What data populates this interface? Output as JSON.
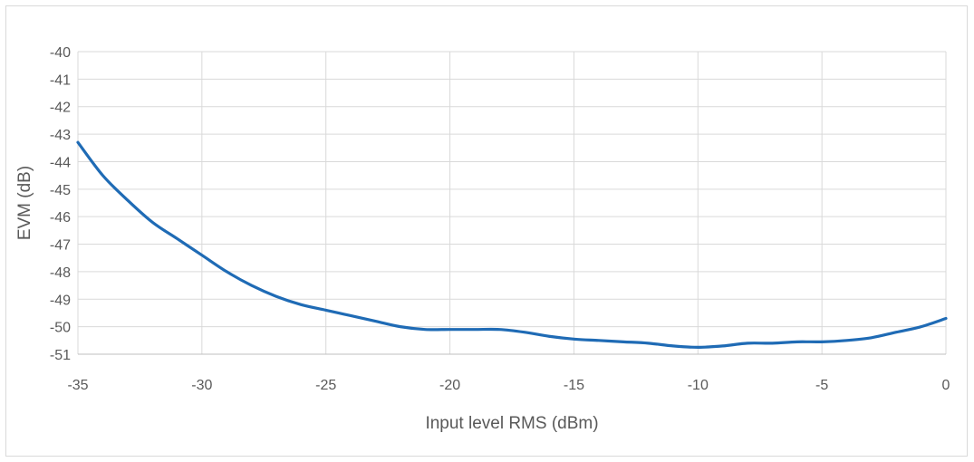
{
  "chart_data": {
    "type": "line",
    "title": "",
    "xlabel": "Input level RMS (dBm)",
    "ylabel": "EVM (dB)",
    "xlim": [
      -35,
      0
    ],
    "ylim": [
      -51,
      -40
    ],
    "x_ticks": [
      -35,
      -30,
      -25,
      -20,
      -15,
      -10,
      -5,
      0
    ],
    "y_ticks": [
      -40,
      -41,
      -42,
      -43,
      -44,
      -45,
      -46,
      -47,
      -48,
      -49,
      -50,
      -51
    ],
    "grid": true,
    "legend": "none",
    "series": [
      {
        "color": "#1f6bb5",
        "x": [
          -35,
          -34,
          -33,
          -32,
          -31,
          -30,
          -29,
          -28,
          -27,
          -26,
          -25,
          -24,
          -23,
          -22,
          -21,
          -20,
          -19,
          -18,
          -17,
          -16,
          -15,
          -14,
          -13,
          -12,
          -11,
          -10,
          -9,
          -8,
          -7,
          -6,
          -5,
          -4,
          -3,
          -2,
          -1,
          0
        ],
        "y": [
          -43.3,
          -44.5,
          -45.4,
          -46.2,
          -46.8,
          -47.4,
          -48.0,
          -48.5,
          -48.9,
          -49.2,
          -49.4,
          -49.6,
          -49.8,
          -50.0,
          -50.1,
          -50.1,
          -50.1,
          -50.1,
          -50.2,
          -50.35,
          -50.45,
          -50.5,
          -50.55,
          -50.6,
          -50.7,
          -50.75,
          -50.7,
          -50.6,
          -50.6,
          -50.55,
          -50.55,
          -50.5,
          -50.4,
          -50.2,
          -50.0,
          -49.7
        ]
      }
    ]
  }
}
